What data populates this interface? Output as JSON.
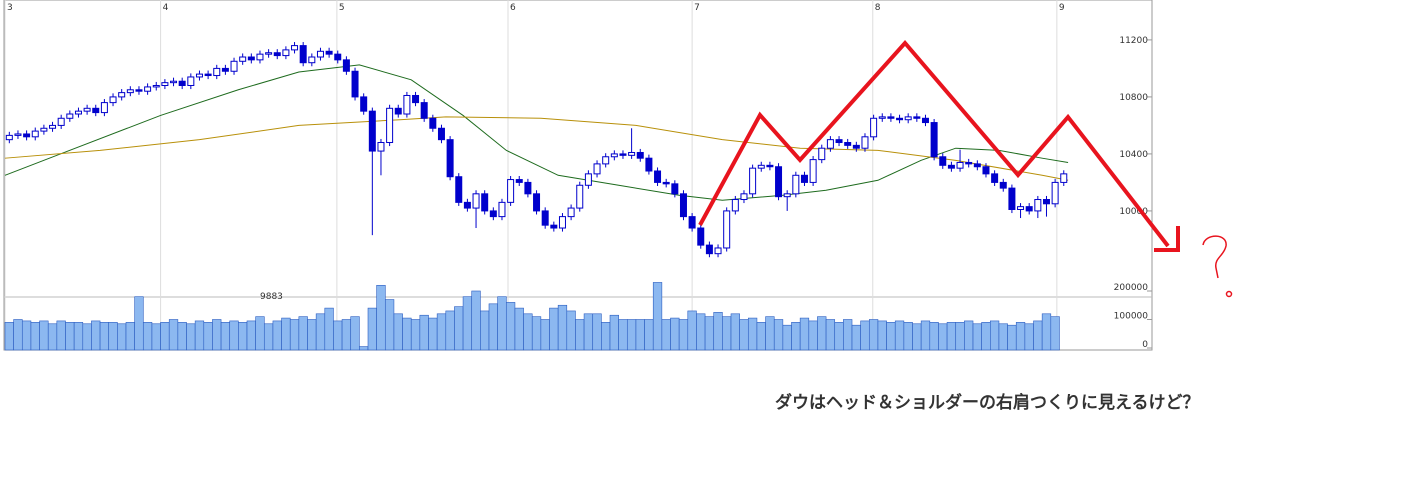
{
  "chart_data": [
    {
      "type": "candlestick",
      "xlim": [
        0,
        123.8
      ],
      "xticks": [
        {
          "value": 0,
          "label": "3"
        },
        {
          "value": 18,
          "label": "4"
        },
        {
          "value": 38.4,
          "label": "5"
        },
        {
          "value": 58.2,
          "label": "6"
        },
        {
          "value": 79.5,
          "label": "7"
        },
        {
          "value": 100.4,
          "label": "8"
        },
        {
          "value": 121.7,
          "label": "9"
        }
      ],
      "ylim": [
        9410,
        11480
      ],
      "yticks": [
        10000,
        10400,
        10800,
        11200
      ],
      "up_color": "#ffffff",
      "down_color": "#0000cc",
      "edge_color": "#0000cc",
      "ohlc": [
        [
          10500,
          10555,
          10475,
          10530
        ],
        [
          10530,
          10565,
          10505,
          10540
        ],
        [
          10540,
          10565,
          10495,
          10520
        ],
        [
          10520,
          10585,
          10495,
          10560
        ],
        [
          10560,
          10605,
          10535,
          10580
        ],
        [
          10580,
          10625,
          10555,
          10600
        ],
        [
          10600,
          10675,
          10575,
          10650
        ],
        [
          10650,
          10705,
          10625,
          10680
        ],
        [
          10680,
          10725,
          10655,
          10700
        ],
        [
          10700,
          10745,
          10675,
          10720
        ],
        [
          10720,
          10745,
          10665,
          10690
        ],
        [
          10690,
          10785,
          10665,
          10760
        ],
        [
          10760,
          10825,
          10735,
          10800
        ],
        [
          10800,
          10855,
          10775,
          10830
        ],
        [
          10830,
          10875,
          10805,
          10850
        ],
        [
          10850,
          10875,
          10815,
          10840
        ],
        [
          10840,
          10895,
          10815,
          10870
        ],
        [
          10870,
          10905,
          10845,
          10880
        ],
        [
          10880,
          10925,
          10855,
          10900
        ],
        [
          10900,
          10935,
          10875,
          10910
        ],
        [
          10910,
          10935,
          10855,
          10880
        ],
        [
          10880,
          10965,
          10855,
          10940
        ],
        [
          10940,
          10985,
          10915,
          10960
        ],
        [
          10960,
          10985,
          10925,
          10950
        ],
        [
          10950,
          11025,
          10925,
          11000
        ],
        [
          11000,
          11025,
          10955,
          10980
        ],
        [
          10980,
          11075,
          10955,
          11050
        ],
        [
          11050,
          11105,
          11025,
          11080
        ],
        [
          11080,
          11105,
          11035,
          11060
        ],
        [
          11060,
          11125,
          11035,
          11100
        ],
        [
          11100,
          11135,
          11075,
          11110
        ],
        [
          11110,
          11135,
          11065,
          11090
        ],
        [
          11090,
          11155,
          11065,
          11130
        ],
        [
          11130,
          11185,
          11105,
          11160
        ],
        [
          11160,
          11185,
          11015,
          11040
        ],
        [
          11040,
          11105,
          11015,
          11080
        ],
        [
          11080,
          11145,
          11055,
          11120
        ],
        [
          11120,
          11145,
          11075,
          11100
        ],
        [
          11100,
          11125,
          11035,
          11060
        ],
        [
          11060,
          11085,
          10955,
          10980
        ],
        [
          10980,
          11005,
          10775,
          10800
        ],
        [
          10800,
          10825,
          10675,
          10700
        ],
        [
          10700,
          10725,
          9830,
          10420
        ],
        [
          10420,
          10505,
          10250,
          10480
        ],
        [
          10480,
          10745,
          10455,
          10720
        ],
        [
          10720,
          10745,
          10655,
          10680
        ],
        [
          10680,
          10835,
          10655,
          10810
        ],
        [
          10810,
          10835,
          10735,
          10760
        ],
        [
          10760,
          10785,
          10625,
          10650
        ],
        [
          10650,
          10675,
          10555,
          10580
        ],
        [
          10580,
          10605,
          10475,
          10500
        ],
        [
          10500,
          10525,
          10215,
          10240
        ],
        [
          10240,
          10265,
          10035,
          10060
        ],
        [
          10060,
          10085,
          9995,
          10020
        ],
        [
          10020,
          10145,
          9880,
          10120
        ],
        [
          10120,
          10145,
          9975,
          10000
        ],
        [
          10000,
          10025,
          9935,
          9960
        ],
        [
          9960,
          10085,
          9935,
          10060
        ],
        [
          10060,
          10245,
          10035,
          10220
        ],
        [
          10220,
          10245,
          10175,
          10200
        ],
        [
          10200,
          10225,
          10095,
          10120
        ],
        [
          10120,
          10145,
          9975,
          10000
        ],
        [
          10000,
          10025,
          9875,
          9900
        ],
        [
          9900,
          9925,
          9855,
          9880
        ],
        [
          9880,
          9985,
          9855,
          9960
        ],
        [
          9960,
          10045,
          9935,
          10020
        ],
        [
          10020,
          10205,
          9995,
          10180
        ],
        [
          10180,
          10285,
          10155,
          10260
        ],
        [
          10260,
          10355,
          10235,
          10330
        ],
        [
          10330,
          10405,
          10305,
          10380
        ],
        [
          10380,
          10425,
          10355,
          10400
        ],
        [
          10400,
          10425,
          10365,
          10390
        ],
        [
          10390,
          10580,
          10365,
          10410
        ],
        [
          10410,
          10435,
          10345,
          10370
        ],
        [
          10370,
          10395,
          10255,
          10280
        ],
        [
          10280,
          10305,
          10175,
          10200
        ],
        [
          10200,
          10225,
          10165,
          10190
        ],
        [
          10190,
          10215,
          10095,
          10120
        ],
        [
          10120,
          10145,
          9935,
          9960
        ],
        [
          9960,
          9985,
          9855,
          9880
        ],
        [
          9880,
          9905,
          9735,
          9760
        ],
        [
          9760,
          9785,
          9675,
          9700
        ],
        [
          9700,
          9765,
          9675,
          9740
        ],
        [
          9740,
          10025,
          9715,
          10000
        ],
        [
          10000,
          10105,
          9975,
          10080
        ],
        [
          10080,
          10145,
          10055,
          10120
        ],
        [
          10120,
          10325,
          10095,
          10300
        ],
        [
          10300,
          10345,
          10275,
          10320
        ],
        [
          10320,
          10345,
          10285,
          10310
        ],
        [
          10310,
          10335,
          10075,
          10100
        ],
        [
          10100,
          10145,
          10000,
          10120
        ],
        [
          10120,
          10275,
          10095,
          10250
        ],
        [
          10250,
          10275,
          10175,
          10200
        ],
        [
          10200,
          10385,
          10175,
          10360
        ],
        [
          10360,
          10465,
          10335,
          10440
        ],
        [
          10440,
          10525,
          10415,
          10500
        ],
        [
          10500,
          10525,
          10455,
          10480
        ],
        [
          10480,
          10505,
          10435,
          10460
        ],
        [
          10460,
          10485,
          10415,
          10440
        ],
        [
          10440,
          10545,
          10415,
          10520
        ],
        [
          10520,
          10675,
          10495,
          10650
        ],
        [
          10650,
          10685,
          10625,
          10660
        ],
        [
          10660,
          10685,
          10625,
          10650
        ],
        [
          10650,
          10675,
          10615,
          10640
        ],
        [
          10640,
          10685,
          10615,
          10660
        ],
        [
          10660,
          10685,
          10625,
          10650
        ],
        [
          10650,
          10675,
          10595,
          10620
        ],
        [
          10620,
          10645,
          10355,
          10380
        ],
        [
          10380,
          10405,
          10295,
          10320
        ],
        [
          10320,
          10345,
          10275,
          10300
        ],
        [
          10300,
          10430,
          10275,
          10340
        ],
        [
          10340,
          10365,
          10305,
          10330
        ],
        [
          10330,
          10355,
          10285,
          10310
        ],
        [
          10310,
          10335,
          10235,
          10260
        ],
        [
          10260,
          10285,
          10175,
          10200
        ],
        [
          10200,
          10225,
          10135,
          10160
        ],
        [
          10160,
          10185,
          9985,
          10010
        ],
        [
          10010,
          10055,
          9950,
          10030
        ],
        [
          10030,
          10055,
          9975,
          10000
        ],
        [
          10000,
          10105,
          9950,
          10080
        ],
        [
          10080,
          10105,
          9960,
          10050
        ],
        [
          10050,
          10225,
          10025,
          10200
        ],
        [
          10200,
          10285,
          10175,
          10260
        ]
      ],
      "moving_averages": [
        {
          "color": "#1e6b1e",
          "x": [
            0,
            6,
            18,
            27,
            34,
            41,
            47,
            53,
            58,
            64,
            71,
            78,
            83,
            90,
            95,
            101,
            106,
            110,
            115,
            120,
            123
          ],
          "values": [
            10250,
            10390,
            10670,
            10850,
            10975,
            11025,
            10920,
            10670,
            10425,
            10250,
            10180,
            10110,
            10075,
            10110,
            10145,
            10215,
            10355,
            10440,
            10425,
            10370,
            10340
          ]
        },
        {
          "color": "#b8900a",
          "x": [
            0,
            11,
            22.5,
            34,
            45.7,
            51,
            62,
            73,
            83,
            92,
            101,
            110,
            120,
            123
          ],
          "values": [
            10370,
            10425,
            10500,
            10600,
            10640,
            10660,
            10650,
            10600,
            10500,
            10440,
            10425,
            10355,
            10250,
            10215
          ]
        }
      ]
    },
    {
      "type": "bar",
      "ylim": [
        0,
        200000
      ],
      "yticks": [
        0,
        100000,
        200000
      ],
      "color": "#8cb8f0",
      "edge_color": "#2a5cc0",
      "annotation": "9883",
      "values": [
        90000,
        100000,
        95000,
        90000,
        95000,
        85000,
        95000,
        90000,
        90000,
        85000,
        95000,
        90000,
        90000,
        85000,
        90000,
        180000,
        90000,
        85000,
        90000,
        100000,
        90000,
        85000,
        95000,
        90000,
        100000,
        90000,
        95000,
        90000,
        95000,
        110000,
        85000,
        95000,
        105000,
        100000,
        110000,
        100000,
        120000,
        140000,
        95000,
        100000,
        110000,
        5000,
        140000,
        220000,
        170000,
        120000,
        105000,
        100000,
        115000,
        105000,
        120000,
        130000,
        145000,
        180000,
        200000,
        130000,
        155000,
        180000,
        160000,
        140000,
        120000,
        110000,
        100000,
        140000,
        150000,
        130000,
        100000,
        120000,
        120000,
        90000,
        115000,
        100000,
        100000,
        100000,
        100000,
        230000,
        100000,
        105000,
        100000,
        130000,
        120000,
        110000,
        125000,
        110000,
        120000,
        100000,
        105000,
        90000,
        110000,
        100000,
        80000,
        90000,
        105000,
        95000,
        110000,
        100000,
        90000,
        100000,
        80000,
        95000,
        100000,
        95000,
        90000,
        95000,
        90000,
        85000,
        95000,
        90000,
        85000,
        90000,
        90000,
        95000,
        85000,
        90000,
        95000,
        85000,
        80000,
        90000,
        85000,
        95000,
        120000,
        110000
      ]
    }
  ],
  "annotation": {
    "text": "ダウはヘッド＆ショルダーの右肩つくりに見えるけど？",
    "color": "#e8141e"
  }
}
